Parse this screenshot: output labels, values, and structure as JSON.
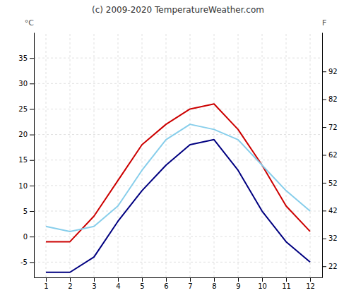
{
  "chart_data": {
    "type": "line",
    "title": "(c) 2009-2020 TemperatureWeather.com",
    "ylabel": "°C",
    "y2label": "F",
    "x": [
      1,
      2,
      3,
      4,
      5,
      6,
      7,
      8,
      9,
      10,
      11,
      12
    ],
    "series": [
      {
        "color": "#cc0000",
        "values": [
          -1,
          -1,
          4,
          11,
          18,
          22,
          25,
          26,
          21,
          14,
          6,
          1
        ]
      },
      {
        "color": "#000080",
        "values": [
          -7,
          -7,
          -4,
          3,
          9,
          14,
          18,
          19,
          13,
          5,
          -1,
          -5
        ]
      },
      {
        "color": "#87CEEB",
        "values": [
          2,
          1,
          2,
          6,
          13,
          19,
          22,
          21,
          19,
          14,
          9,
          5
        ]
      }
    ],
    "xlim": [
      0.5,
      12.5
    ],
    "xticks": [
      1,
      2,
      3,
      4,
      5,
      6,
      7,
      8,
      9,
      10,
      11,
      12
    ],
    "ylim": [
      -8,
      40
    ],
    "yticks": [
      -5,
      0,
      5,
      10,
      15,
      20,
      25,
      30,
      35
    ],
    "y2lim": [
      18,
      106
    ],
    "y2ticks": [
      22,
      32,
      42,
      52,
      62,
      72,
      82,
      92
    ],
    "grid": true
  }
}
